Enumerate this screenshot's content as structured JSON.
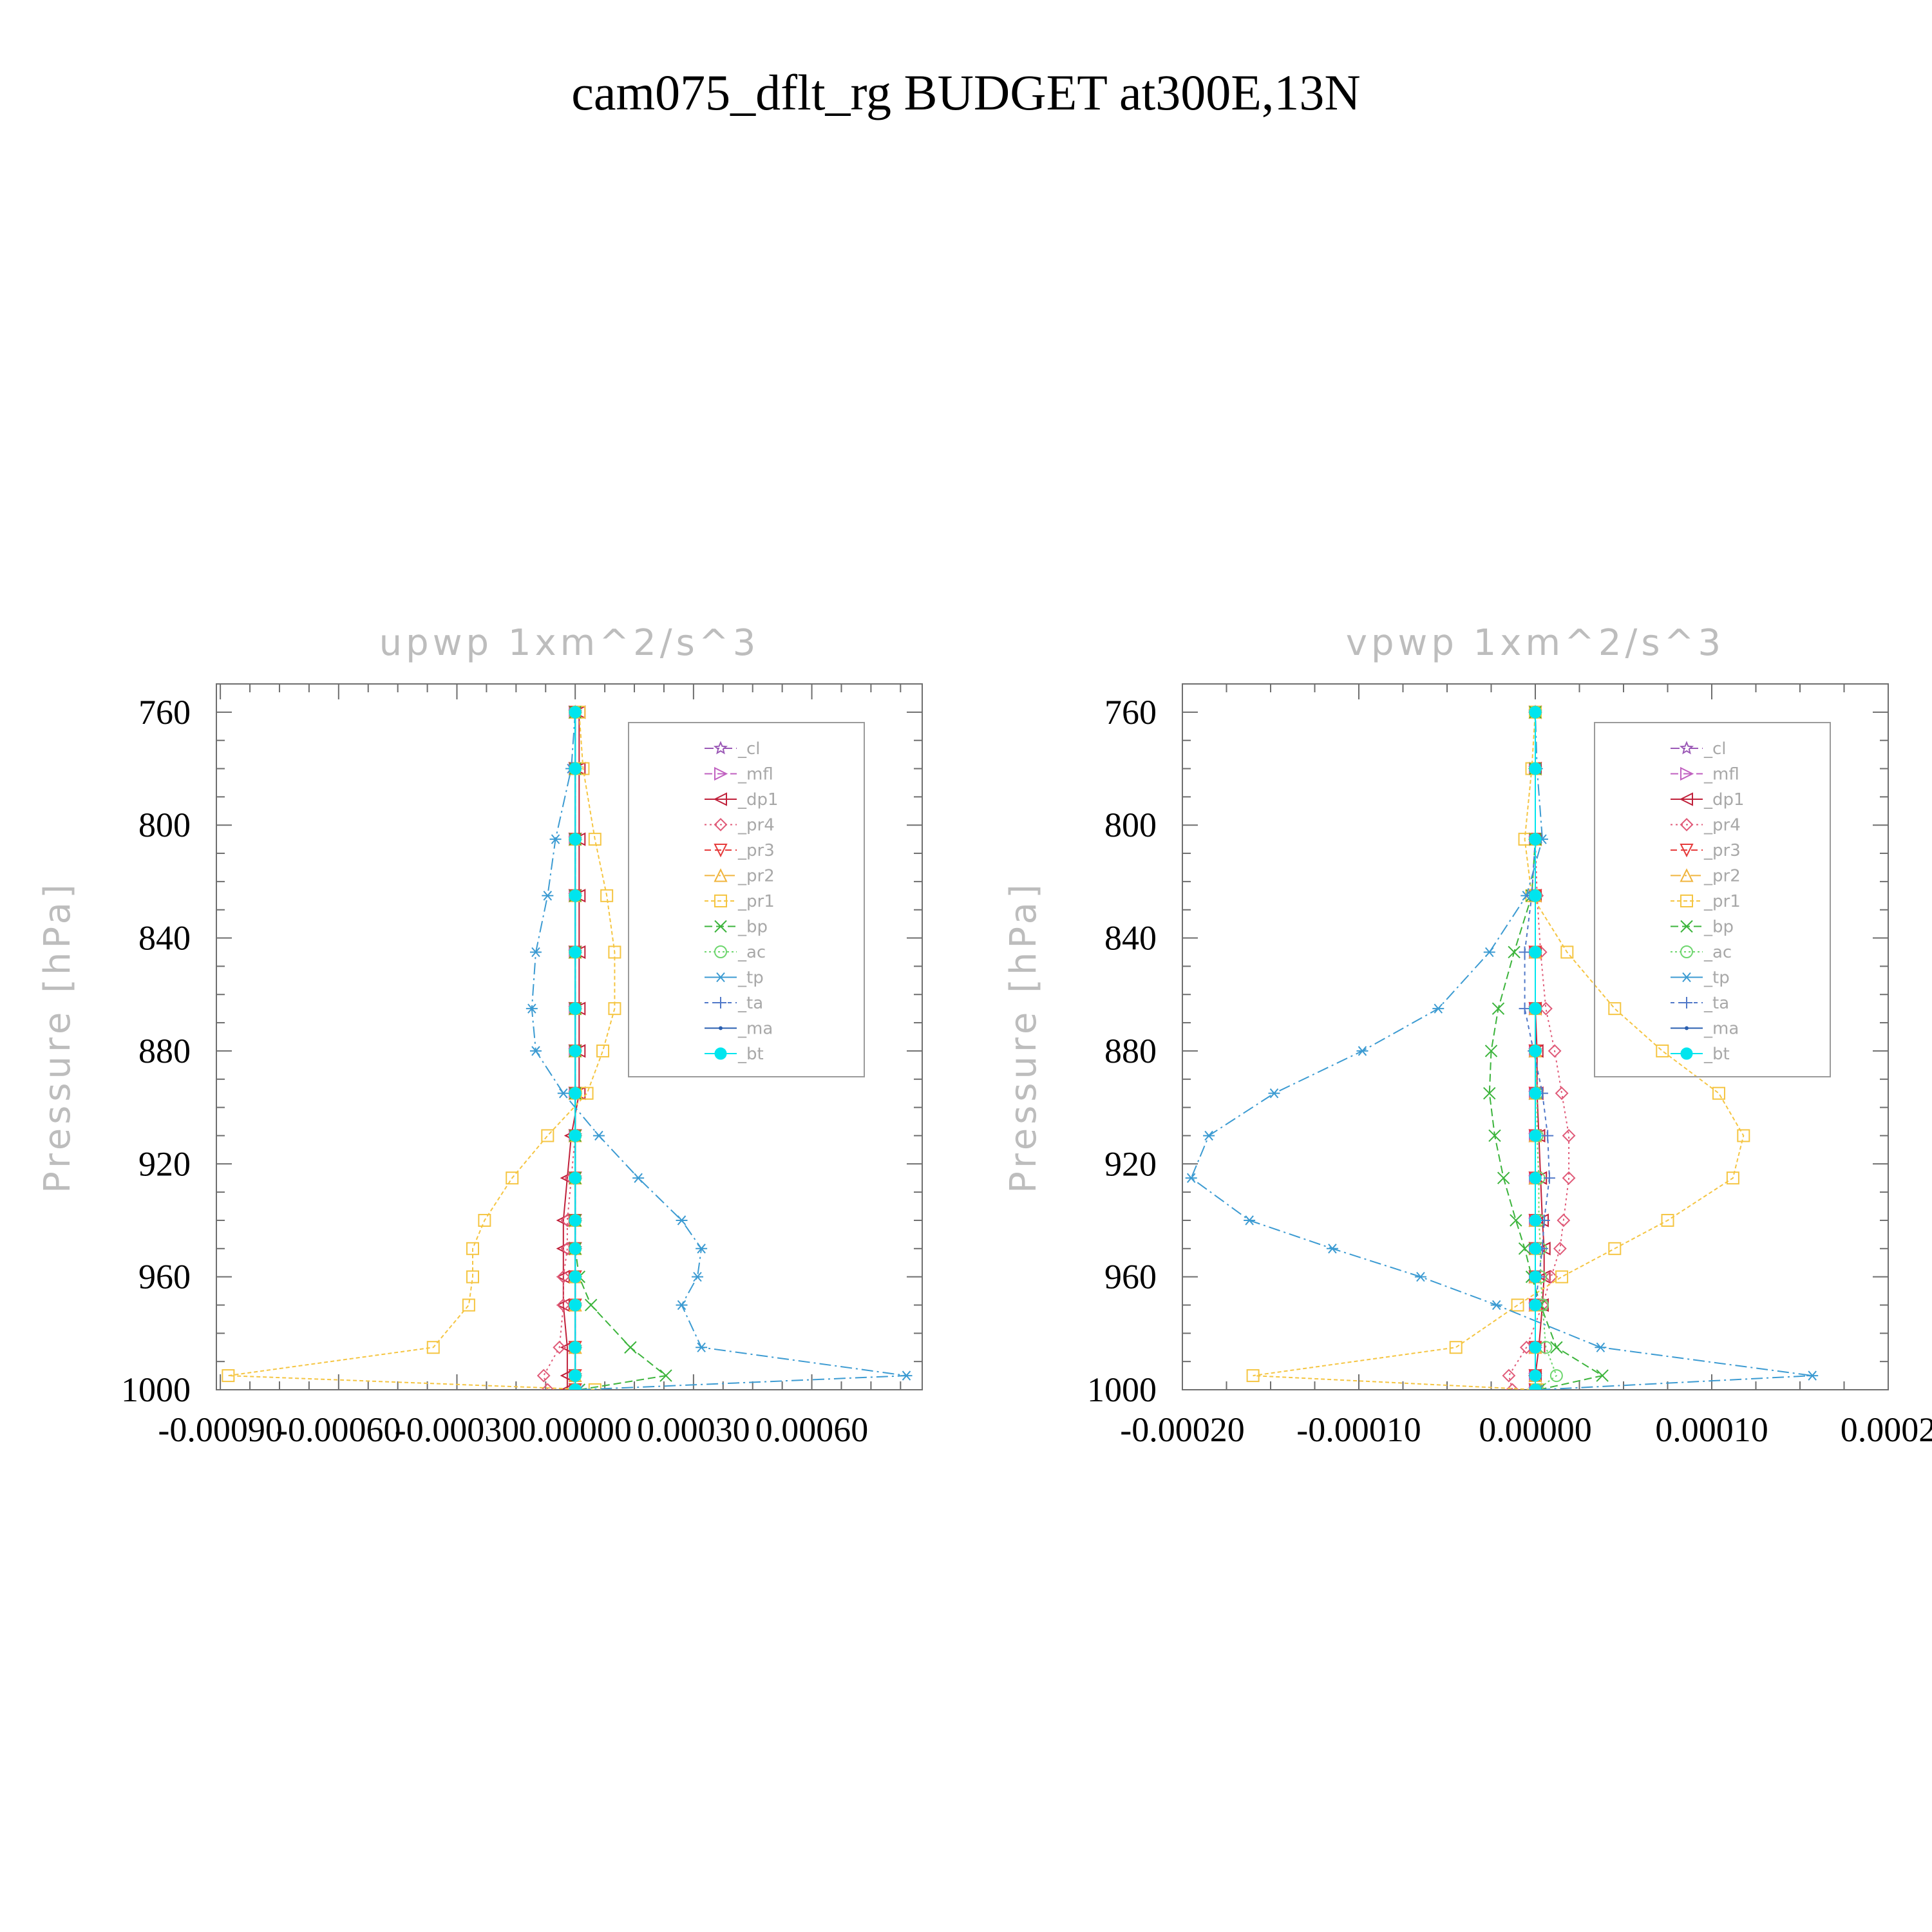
{
  "page": {
    "title": "cam075_dflt_rg  BUDGET at300E,13N"
  },
  "chart_data": [
    {
      "type": "line",
      "title": "upwp    1xm^2/s^3",
      "ylabel": "Pressure  [hPa]",
      "xlim": [
        -0.00091,
        0.00088
      ],
      "ylim": [
        750,
        1000
      ],
      "y_reversed": true,
      "xticks": [
        -0.0009,
        -0.0006,
        -0.0003,
        0.0,
        0.0003,
        0.0006
      ],
      "xtick_labels": [
        "-0.00090",
        "-0.00060",
        "-0.00030",
        "0.00000",
        "0.00030",
        "0.00060"
      ],
      "yticks": [
        760,
        800,
        840,
        880,
        920,
        960,
        1000
      ],
      "ytick_labels": [
        "760",
        "800",
        "840",
        "880",
        "920",
        "960",
        "1000"
      ],
      "grid": false,
      "legend_position": "top-right",
      "y": [
        1000,
        995,
        985,
        970,
        960,
        950,
        940,
        925,
        910,
        895,
        880,
        865,
        845,
        825,
        805,
        780,
        760
      ],
      "series": [
        {
          "name": "_cl",
          "color": "#9b59b6",
          "marker": "star",
          "values": [
            0,
            0,
            0,
            0,
            0,
            0,
            0,
            0,
            0,
            0,
            0,
            0,
            0,
            0,
            0,
            0,
            0
          ]
        },
        {
          "name": "_mfl",
          "color": "#c060c0",
          "marker": "tri-right",
          "values": [
            0,
            0,
            0,
            0,
            0,
            0,
            0,
            0,
            0,
            0,
            0,
            0,
            0,
            0,
            0,
            0,
            0
          ]
        },
        {
          "name": "_dp1",
          "color": "#c0203a",
          "marker": "tri-left",
          "values": [
            -2e-05,
            -2e-05,
            -2e-05,
            -3e-05,
            -3e-05,
            -3e-05,
            -3e-05,
            -2e-05,
            -1e-05,
            1e-05,
            1e-05,
            1e-05,
            1e-05,
            1e-05,
            1e-05,
            1e-05,
            1e-05
          ]
        },
        {
          "name": "_pr4",
          "color": "#e05a78",
          "marker": "diamond",
          "values": [
            -7e-05,
            -8e-05,
            -4e-05,
            -3e-05,
            -3e-05,
            -2e-05,
            -2e-05,
            -1e-05,
            0,
            0,
            0,
            0,
            0,
            0,
            0,
            0,
            0
          ]
        },
        {
          "name": "_pr3",
          "color": "#e63b3b",
          "marker": "tri-down",
          "values": [
            0,
            0,
            0,
            0,
            0,
            0,
            0,
            0,
            0,
            0,
            0,
            0,
            0,
            0,
            0,
            0,
            0
          ]
        },
        {
          "name": "_pr2",
          "color": "#f0b43c",
          "marker": "triangle",
          "values": [
            0,
            0,
            0,
            0,
            0,
            0,
            0,
            0,
            0,
            0,
            0,
            0,
            0,
            0,
            0,
            0,
            0
          ]
        },
        {
          "name": "_pr1",
          "color": "#f5c542",
          "marker": "square",
          "values": [
            5e-05,
            -0.00088,
            -0.00036,
            -0.00027,
            -0.00026,
            -0.00026,
            -0.00023,
            -0.00016,
            -7e-05,
            3e-05,
            7e-05,
            0.0001,
            0.0001,
            8e-05,
            5e-05,
            2e-05,
            1e-05
          ]
        },
        {
          "name": "_bp",
          "color": "#3cb43c",
          "marker": "x",
          "values": [
            1e-05,
            0.00023,
            0.00014,
            4e-05,
            1e-05,
            0,
            0,
            0,
            0,
            0,
            0,
            0,
            0,
            0,
            0,
            0,
            0
          ]
        },
        {
          "name": "_ac",
          "color": "#6ed66e",
          "marker": "circle",
          "values": [
            0,
            0,
            0,
            0,
            0,
            0,
            0,
            0,
            0,
            0,
            0,
            0,
            0,
            0,
            0,
            0,
            0
          ]
        },
        {
          "name": "_tp",
          "color": "#3c9bd2",
          "marker": "asterisk",
          "values": [
            1e-05,
            0.00084,
            0.00032,
            0.00027,
            0.00031,
            0.00032,
            0.00027,
            0.00016,
            6e-05,
            -3e-05,
            -0.0001,
            -0.00011,
            -0.0001,
            -7e-05,
            -5e-05,
            -1e-05,
            0
          ]
        },
        {
          "name": "_ta",
          "color": "#5078c8",
          "marker": "plus",
          "values": [
            0,
            0,
            0,
            0,
            0,
            0,
            0,
            0,
            0,
            0,
            0,
            0,
            0,
            0,
            0,
            0,
            0
          ]
        },
        {
          "name": "_ma",
          "color": "#2a5fb0",
          "marker": "dot",
          "values": [
            0,
            0,
            0,
            0,
            0,
            0,
            0,
            0,
            0,
            0,
            0,
            0,
            0,
            0,
            0,
            0,
            0
          ]
        },
        {
          "name": "_bt",
          "color": "#00e5ee",
          "marker": "filled-circle",
          "values": [
            0,
            0,
            0,
            0,
            0,
            0,
            0,
            0,
            0,
            0,
            0,
            0,
            0,
            0,
            0,
            0,
            0
          ]
        }
      ]
    },
    {
      "type": "line",
      "title": "vpwp    1xm^2/s^3",
      "ylabel": "Pressure  [hPa]",
      "xlim": [
        -0.0002,
        0.0002
      ],
      "ylim": [
        750,
        1000
      ],
      "y_reversed": true,
      "xticks": [
        -0.0002,
        -0.0001,
        0.0,
        0.0001,
        0.0002
      ],
      "xtick_labels": [
        "-0.00020",
        "-0.00010",
        "0.00000",
        "0.00010",
        "0.0002"
      ],
      "yticks": [
        760,
        800,
        840,
        880,
        920,
        960,
        1000
      ],
      "ytick_labels": [
        "760",
        "800",
        "840",
        "880",
        "920",
        "960",
        "1000"
      ],
      "grid": false,
      "legend_position": "top-right",
      "y": [
        1000,
        995,
        985,
        970,
        960,
        950,
        940,
        925,
        910,
        895,
        880,
        865,
        845,
        825,
        805,
        780,
        760
      ],
      "series": [
        {
          "name": "_cl",
          "color": "#9b59b6",
          "marker": "star",
          "values": [
            0,
            0,
            0,
            0,
            0,
            0,
            0,
            0,
            0,
            0,
            0,
            0,
            0,
            0,
            0,
            0,
            0
          ]
        },
        {
          "name": "_mfl",
          "color": "#c060c0",
          "marker": "tri-right",
          "values": [
            0,
            0,
            0,
            0,
            0,
            0,
            0,
            0,
            0,
            0,
            0,
            0,
            0,
            0,
            0,
            0,
            0
          ]
        },
        {
          "name": "_dp1",
          "color": "#c0203a",
          "marker": "tri-left",
          "values": [
            0,
            0,
            2e-06,
            4e-06,
            5e-06,
            5e-06,
            4e-06,
            3e-06,
            2e-06,
            1e-06,
            1e-06,
            0,
            0,
            0,
            0,
            0,
            0
          ]
        },
        {
          "name": "_pr4",
          "color": "#e05a78",
          "marker": "diamond",
          "values": [
            -1.3e-05,
            -1.5e-05,
            -5e-06,
            4e-06,
            9e-06,
            1.4e-05,
            1.6e-05,
            1.9e-05,
            1.9e-05,
            1.5e-05,
            1.1e-05,
            6e-06,
            3e-06,
            1e-06,
            0,
            0,
            0
          ]
        },
        {
          "name": "_pr3",
          "color": "#e63b3b",
          "marker": "tri-down",
          "values": [
            0,
            0,
            0,
            0,
            0,
            0,
            0,
            0,
            0,
            0,
            0,
            0,
            0,
            0,
            0,
            0,
            0
          ]
        },
        {
          "name": "_pr2",
          "color": "#f0b43c",
          "marker": "triangle",
          "values": [
            0,
            0,
            0,
            0,
            0,
            0,
            0,
            0,
            0,
            0,
            0,
            0,
            0,
            0,
            0,
            0,
            0
          ]
        },
        {
          "name": "_pr1",
          "color": "#f5c542",
          "marker": "square",
          "values": [
            1e-06,
            -0.00016,
            -4.5e-05,
            -1e-05,
            1.5e-05,
            4.5e-05,
            7.5e-05,
            0.000112,
            0.000118,
            0.000104,
            7.2e-05,
            4.5e-05,
            1.8e-05,
            -2e-06,
            -6e-06,
            -2e-06,
            0
          ]
        },
        {
          "name": "_bp",
          "color": "#3cb43c",
          "marker": "x",
          "values": [
            2e-06,
            3.8e-05,
            1.2e-05,
            3e-06,
            -2e-06,
            -6e-06,
            -1.1e-05,
            -1.8e-05,
            -2.3e-05,
            -2.6e-05,
            -2.5e-05,
            -2.1e-05,
            -1.2e-05,
            -2e-06,
            0,
            0,
            0
          ]
        },
        {
          "name": "_ac",
          "color": "#6ed66e",
          "marker": "circle",
          "values": [
            1e-06,
            1.2e-05,
            6e-06,
            4e-06,
            3e-06,
            3e-06,
            2e-06,
            2e-06,
            1e-06,
            1e-06,
            0,
            0,
            0,
            0,
            0,
            0,
            0
          ]
        },
        {
          "name": "_tp",
          "color": "#3c9bd2",
          "marker": "asterisk",
          "values": [
            2e-06,
            0.000157,
            3.7e-05,
            -2.2e-05,
            -6.5e-05,
            -0.000115,
            -0.000162,
            -0.000195,
            -0.000185,
            -0.000148,
            -9.8e-05,
            -5.5e-05,
            -2.6e-05,
            -5e-06,
            4e-06,
            1e-06,
            0
          ]
        },
        {
          "name": "_ta",
          "color": "#5078c8",
          "marker": "plus",
          "values": [
            0,
            0,
            0,
            0,
            2e-06,
            4e-06,
            5e-06,
            8e-06,
            7e-06,
            4e-06,
            -1e-06,
            -6e-06,
            -6e-06,
            -2e-06,
            0,
            0,
            0
          ]
        },
        {
          "name": "_ma",
          "color": "#2a5fb0",
          "marker": "dot",
          "values": [
            0,
            0,
            0,
            0,
            0,
            0,
            0,
            0,
            0,
            0,
            0,
            0,
            0,
            0,
            0,
            0,
            0
          ]
        },
        {
          "name": "_bt",
          "color": "#00e5ee",
          "marker": "filled-circle",
          "values": [
            0,
            0,
            0,
            0,
            0,
            0,
            0,
            0,
            0,
            0,
            0,
            0,
            0,
            0,
            0,
            0,
            0
          ]
        }
      ]
    }
  ]
}
